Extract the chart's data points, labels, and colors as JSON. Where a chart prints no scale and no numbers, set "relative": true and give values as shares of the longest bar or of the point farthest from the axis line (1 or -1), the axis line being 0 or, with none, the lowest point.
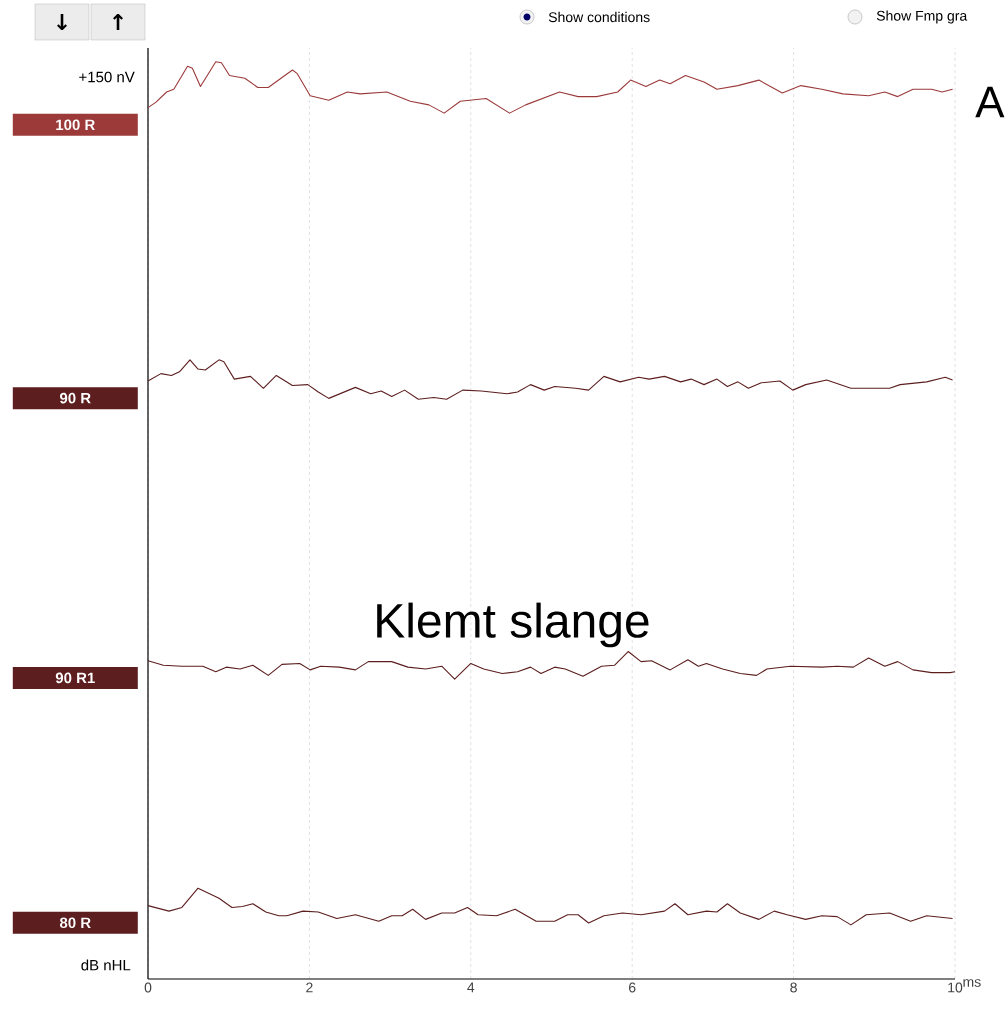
{
  "chart_data": {
    "type": "line",
    "relative": true,
    "xlabel": "ms",
    "xlim": [
      0,
      10
    ],
    "xticks": [
      0,
      2,
      4,
      6,
      8,
      10
    ],
    "grid": "x",
    "line_style": "solid",
    "annotations": [
      "↓",
      "↑",
      "Show conditions",
      "Show Fmp gra",
      "+150 nV",
      "A",
      "Klemt slange",
      "dB nHL"
    ],
    "series": [
      {
        "name": "100 R",
        "color": "#9c3a3a",
        "x": [
          0,
          0.1,
          0.23,
          0.32,
          0.49,
          0.55,
          0.65,
          0.84,
          0.91,
          1.01,
          1.2,
          1.36,
          1.49,
          1.79,
          1.85,
          2.01,
          2.24,
          2.47,
          2.63,
          2.96,
          3.25,
          3.48,
          3.67,
          3.87,
          4.19,
          4.48,
          4.68,
          5.1,
          5.33,
          5.56,
          5.82,
          5.98,
          6.17,
          6.34,
          6.47,
          6.66,
          6.89,
          7.05,
          7.31,
          7.57,
          7.86,
          8.09,
          8.35,
          8.61,
          8.93,
          9.13,
          9.29,
          9.48,
          9.71,
          9.84,
          9.97
        ],
        "values": [
          0.95,
          0.956,
          0.967,
          0.97,
          0.995,
          0.993,
          0.973,
          1.0,
          0.999,
          0.985,
          0.982,
          0.972,
          0.972,
          0.991,
          0.987,
          0.963,
          0.958,
          0.967,
          0.965,
          0.967,
          0.957,
          0.953,
          0.944,
          0.957,
          0.96,
          0.944,
          0.953,
          0.967,
          0.962,
          0.962,
          0.967,
          0.98,
          0.973,
          0.98,
          0.976,
          0.985,
          0.978,
          0.97,
          0.974,
          0.98,
          0.966,
          0.974,
          0.97,
          0.965,
          0.963,
          0.967,
          0.962,
          0.97,
          0.97,
          0.967,
          0.97
        ]
      },
      {
        "name": "90 R",
        "color": "#5c1e1e",
        "x": [
          0,
          0.16,
          0.29,
          0.39,
          0.52,
          0.62,
          0.71,
          0.88,
          0.94,
          1.07,
          1.27,
          1.43,
          1.59,
          1.79,
          1.98,
          2.11,
          2.24,
          2.57,
          2.76,
          2.89,
          3.02,
          3.18,
          3.35,
          3.54,
          3.7,
          3.9,
          4.13,
          4.45,
          4.58,
          4.74,
          4.91,
          5.04,
          5.3,
          5.46,
          5.65,
          5.85,
          6.08,
          6.21,
          6.4,
          6.6,
          6.73,
          6.89,
          7.05,
          7.18,
          7.31,
          7.44,
          7.6,
          7.83,
          7.99,
          8.15,
          8.41,
          8.71,
          9.19,
          9.32,
          9.65,
          9.88,
          9.97
        ],
        "values": [
          0.652,
          0.66,
          0.658,
          0.662,
          0.675,
          0.665,
          0.664,
          0.675,
          0.673,
          0.654,
          0.657,
          0.644,
          0.658,
          0.647,
          0.648,
          0.64,
          0.633,
          0.645,
          0.638,
          0.641,
          0.635,
          0.642,
          0.632,
          0.634,
          0.632,
          0.642,
          0.641,
          0.638,
          0.64,
          0.648,
          0.642,
          0.646,
          0.644,
          0.642,
          0.657,
          0.651,
          0.656,
          0.654,
          0.657,
          0.651,
          0.654,
          0.648,
          0.654,
          0.646,
          0.651,
          0.644,
          0.65,
          0.652,
          0.642,
          0.648,
          0.653,
          0.644,
          0.644,
          0.648,
          0.651,
          0.656,
          0.653
        ]
      },
      {
        "name": "90 R1",
        "color": "#5c1e1e",
        "x": [
          0,
          0.19,
          0.42,
          0.68,
          0.84,
          0.97,
          1.14,
          1.3,
          1.49,
          1.66,
          1.88,
          2.01,
          2.14,
          2.37,
          2.57,
          2.73,
          3.02,
          3.22,
          3.44,
          3.64,
          3.8,
          4.0,
          4.16,
          4.39,
          4.58,
          4.74,
          4.87,
          5.04,
          5.17,
          5.39,
          5.62,
          5.78,
          5.95,
          6.11,
          6.24,
          6.47,
          6.69,
          6.82,
          6.92,
          7.12,
          7.34,
          7.54,
          7.67,
          7.96,
          8.35,
          8.54,
          8.74,
          8.93,
          9.13,
          9.29,
          9.48,
          9.71,
          9.94,
          10.0
        ],
        "values": [
          0.347,
          0.342,
          0.341,
          0.341,
          0.335,
          0.34,
          0.338,
          0.342,
          0.331,
          0.343,
          0.344,
          0.337,
          0.341,
          0.34,
          0.337,
          0.346,
          0.346,
          0.34,
          0.338,
          0.341,
          0.327,
          0.344,
          0.338,
          0.333,
          0.335,
          0.34,
          0.333,
          0.34,
          0.338,
          0.33,
          0.341,
          0.342,
          0.357,
          0.346,
          0.347,
          0.337,
          0.348,
          0.341,
          0.344,
          0.338,
          0.333,
          0.331,
          0.338,
          0.341,
          0.34,
          0.341,
          0.34,
          0.35,
          0.341,
          0.346,
          0.337,
          0.334,
          0.334,
          0.335
        ]
      },
      {
        "name": "80 R",
        "color": "#5c1e1e",
        "x": [
          0,
          0.26,
          0.42,
          0.62,
          0.88,
          1.04,
          1.17,
          1.3,
          1.46,
          1.62,
          1.72,
          1.92,
          2.11,
          2.34,
          2.57,
          2.86,
          3.02,
          3.15,
          3.28,
          3.44,
          3.64,
          3.8,
          3.96,
          4.09,
          4.32,
          4.55,
          4.81,
          5.04,
          5.2,
          5.33,
          5.46,
          5.65,
          5.88,
          6.11,
          6.4,
          6.53,
          6.69,
          6.92,
          7.05,
          7.18,
          7.34,
          7.57,
          7.76,
          7.92,
          8.15,
          8.35,
          8.54,
          8.71,
          8.9,
          9.19,
          9.45,
          9.65,
          9.97
        ],
        "values": [
          0.08,
          0.074,
          0.078,
          0.099,
          0.088,
          0.078,
          0.079,
          0.082,
          0.073,
          0.069,
          0.069,
          0.074,
          0.073,
          0.066,
          0.07,
          0.063,
          0.069,
          0.069,
          0.076,
          0.065,
          0.072,
          0.072,
          0.078,
          0.07,
          0.069,
          0.076,
          0.063,
          0.063,
          0.07,
          0.07,
          0.061,
          0.069,
          0.072,
          0.07,
          0.074,
          0.082,
          0.07,
          0.074,
          0.073,
          0.082,
          0.072,
          0.065,
          0.074,
          0.07,
          0.065,
          0.069,
          0.068,
          0.059,
          0.07,
          0.072,
          0.063,
          0.069,
          0.066
        ]
      }
    ]
  }
}
